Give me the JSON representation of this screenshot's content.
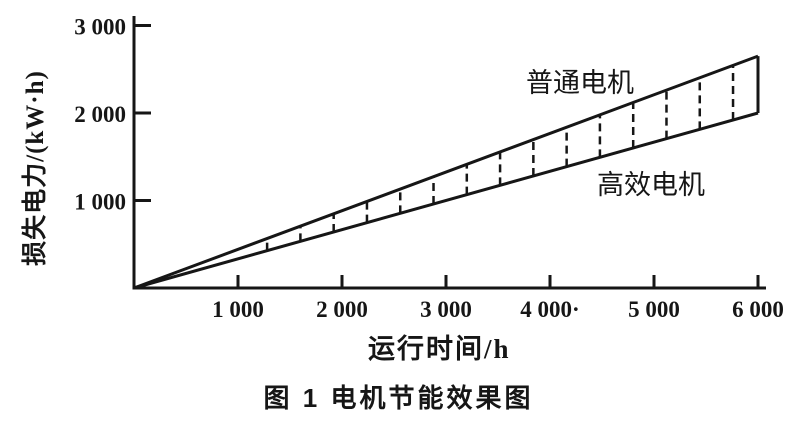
{
  "figure": {
    "caption": "图 1  电机节能效果图"
  },
  "chart_data": {
    "type": "line",
    "title": "电机节能效果图",
    "figure_label": "图 1",
    "xlabel": "运行时间/h",
    "ylabel": "损失电力/(kW·h)",
    "xlim": [
      0,
      6100
    ],
    "ylim": [
      0,
      3100
    ],
    "grid": false,
    "legend": "inline-labels",
    "x_ticks": [
      1000,
      2000,
      3000,
      4000,
      5000,
      6000
    ],
    "x_tick_labels": [
      "1 000",
      "2 000",
      "3 000",
      "4 000·",
      "5 000",
      "6 000"
    ],
    "y_ticks": [
      1000,
      2000,
      3000
    ],
    "y_tick_labels": [
      "1 000",
      "2 000",
      "3 000"
    ],
    "series": [
      {
        "name": "普通电机",
        "x": [
          0,
          6000
        ],
        "values": [
          0,
          2650
        ]
      },
      {
        "name": "高效电机",
        "x": [
          0,
          6000
        ],
        "values": [
          0,
          2000
        ]
      }
    ],
    "dashed_connectors": {
      "from_x": 1280,
      "to_x": 5800,
      "step_x": 320
    },
    "band_close_x": 6000,
    "ink_color": "#161616",
    "background_color": "#ffffff"
  }
}
